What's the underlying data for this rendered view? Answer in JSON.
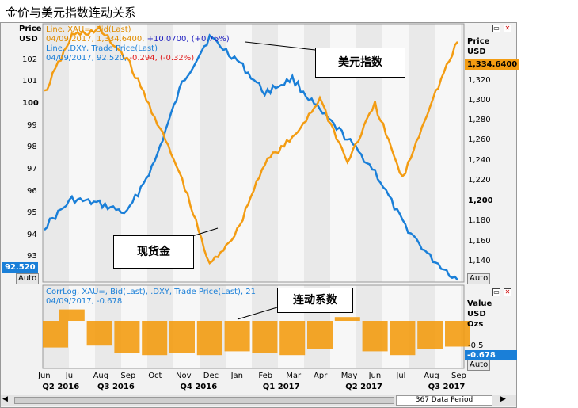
{
  "title": "金价与美元指数连动关系",
  "colors": {
    "gold": "#f39c12",
    "dxy": "#1a7fd8",
    "accent_plus": "#2020c0",
    "accent_minus": "#e02020",
    "legend_gold": "#e08c00"
  },
  "main_panel": {
    "left_axis_title": [
      "Price",
      "USD"
    ],
    "right_axis_title": [
      "Price",
      "USD"
    ],
    "left_ticks": [
      "102",
      "101",
      "100",
      "99",
      "98",
      "97",
      "96",
      "95",
      "94",
      "93"
    ],
    "right_ticks": [
      "1,320",
      "1,300",
      "1,280",
      "1,260",
      "1,240",
      "1,220",
      "1,200",
      "1,180",
      "1,160",
      "1,140"
    ],
    "left_badge": "92.520",
    "right_badge": "1,334.6400",
    "auto_label": "Auto",
    "legend": {
      "gold_line1": "Line, XAU=, Bid(Last)",
      "gold_line2_date": "04/09/2017, 1,334.6400,",
      "gold_line2_change": "+10.0700, (+0.76%)",
      "dxy_line1": "Line, .DXY, Trade Price(Last)",
      "dxy_line2_date": "04/09/2017, 92.520,",
      "dxy_line2_change": "-0.294, (-0.32%)"
    },
    "callout_dxy": "美元指数",
    "callout_gold": "现货金"
  },
  "corr_panel": {
    "right_axis_title": [
      "Value",
      "USD",
      "Ozs"
    ],
    "tick": "-0.5",
    "badge": "-0.678",
    "auto_label": "Auto",
    "legend_line1": "CorrLog, XAU=, Bid(Last), .DXY, Trade Price(Last),  21",
    "legend_line2": "04/09/2017, -0.678",
    "callout": "连动系数"
  },
  "x_axis": {
    "months": [
      "Jun",
      "Jul",
      "Aug",
      "Sep",
      "Oct",
      "Nov",
      "Dec",
      "Jan",
      "Feb",
      "Mar",
      "Apr",
      "May",
      "Jun",
      "Jul",
      "Aug",
      "Sep"
    ],
    "quarters": [
      "Q2 2016",
      "Q3 2016",
      "Q4 2016",
      "Q1 2017",
      "Q2 2017",
      "Q3 2017"
    ]
  },
  "status_bar": {
    "data_period": "367 Data Period"
  },
  "chart_data": [
    {
      "type": "line",
      "title": "",
      "x_label": "",
      "x": [
        "2016-06",
        "2016-07",
        "2016-08",
        "2016-09",
        "2016-10",
        "2016-11",
        "2016-12",
        "2017-01",
        "2017-02",
        "2017-03",
        "2017-04",
        "2017-05",
        "2017-06",
        "2017-07",
        "2017-08",
        "2017-09"
      ],
      "series": [
        {
          "name": "Line, .DXY, Trade Price(Last)",
          "axis": "left",
          "values": [
            94.8,
            96.0,
            95.8,
            95.4,
            97.6,
            101.0,
            103.0,
            102.0,
            100.6,
            101.2,
            99.8,
            98.6,
            97.2,
            95.0,
            93.5,
            92.52
          ]
        },
        {
          "name": "Line, XAU=, Bid(Last)",
          "axis": "right",
          "values": [
            1290,
            1340,
            1345,
            1320,
            1270,
            1215,
            1140,
            1170,
            1230,
            1250,
            1285,
            1230,
            1280,
            1215,
            1280,
            1334.64
          ]
        }
      ],
      "ylim_left": [
        92.5,
        103.5
      ],
      "ylim_right": [
        1127,
        1349
      ],
      "legend_placement": "top-left"
    },
    {
      "type": "bar",
      "title": "",
      "series": [
        {
          "name": "CorrLog, XAU=, Bid(Last), .DXY, Trade Price(Last),  21",
          "values": [
            -0.7,
            0.3,
            -0.65,
            -0.85,
            -0.9,
            -0.85,
            -0.9,
            -0.8,
            -0.85,
            -0.9,
            -0.75,
            0.1,
            -0.8,
            -0.9,
            -0.75,
            -0.678
          ]
        }
      ],
      "x": [
        "2016-06",
        "2016-07",
        "2016-08",
        "2016-09",
        "2016-10",
        "2016-11",
        "2016-12",
        "2017-01",
        "2017-02",
        "2017-03",
        "2017-04",
        "2017-05",
        "2017-06",
        "2017-07",
        "2017-08",
        "2017-09"
      ],
      "ylim": [
        -1,
        0.3
      ]
    }
  ]
}
